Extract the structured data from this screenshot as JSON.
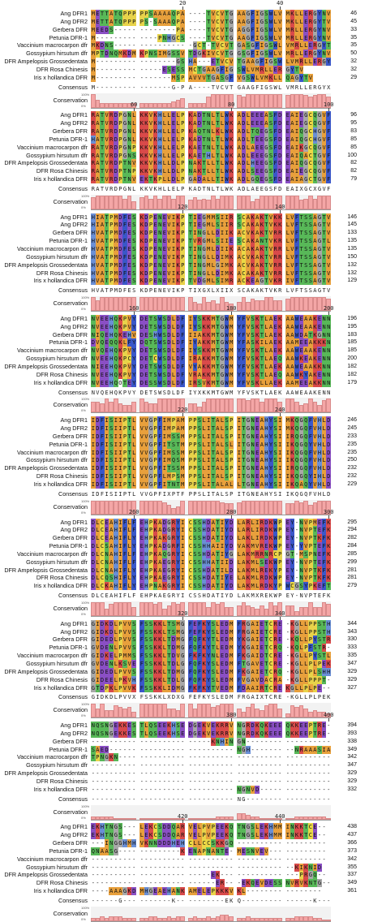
{
  "species": [
    "Ang DFR1",
    "Ang DFR2",
    "Gerbera DFR",
    "Petunia DFR-1",
    "Vaccinium macrocarpon dfr",
    "Gossypium hirsutum dfr",
    "DFR Ampelopsis Grossedentata",
    "DFR Rosa Chinesis",
    "Iris x hollandica DFR"
  ],
  "labels": {
    "consensus": "Consensus",
    "conservation": "Conservation",
    "pct100": "100%",
    "pct0": "0%"
  },
  "colors": {
    "A": "#e8a03c",
    "V": "#e8a03c",
    "L": "#e8a03c",
    "I": "#e8a03c",
    "M": "#e8a03c",
    "F": "#3a57c9",
    "W": "#3a57c9",
    "Y": "#3a57c9",
    "K": "#d94a4a",
    "R": "#d94a4a",
    "H": "#6a8fd6",
    "D": "#8a4fc4",
    "E": "#8a4fc4",
    "S": "#58b858",
    "T": "#58b858",
    "N": "#58b858",
    "Q": "#58b858",
    "G": "#a8a8a8",
    "P": "#e8d34a",
    "C": "#ebd846",
    "-": "#ffffff"
  },
  "blocks": [
    {
      "ruler": [
        {
          "pos": 20,
          "col": 19
        },
        {
          "pos": 40,
          "col": 39
        }
      ],
      "rows": [
        {
          "seq": "METTATQPPP PPSAAAAQPA ----TVCVTG AAGFIGSWLV MKLLERGYNV",
          "end": "46"
        },
        {
          "seq": "METTATQPPP PS-SAAAQPA ----TVCVTG AAGFIGSWLV MKLLERGYTV",
          "end": "45"
        },
        {
          "seq": "MEEDS----- --------PA ----TVCVTG AGGFIGSWLV MRLLERGYNV",
          "end": "33"
        },
        {
          "seq": "M--------- ----PNHGCS ----TVCVTG AAGFIGSWLV MRLLERGYNV",
          "end": "35"
        },
        {
          "seq": "MKDNS----- ----------- GCT-TVCVTG ASGFIGSWLV MRLLERGYTV",
          "end": "35"
        },
        {
          "seq": "MPTDNQMKDM KPNSIMGSSV TDGKIVCVTG GSGFIGSWLV MRLLERGYNV",
          "end": "50"
        },
        {
          "seq": "M--------- --------GSHA ---ETVCVTG AAGFIGSWLV MRLLERGYNV",
          "end": "32"
        },
        {
          "seq": "M--------- -----ESESSMCTG AAGFIGSWLV MRLLERGYTV",
          "end": "32"
        },
        {
          "seq": "M--------- -------MSPA VVVTG ASGFVGSWLV MKLLQAGYTV",
          "end": "29"
        }
      ],
      "consensus": "M--------- -------G-PA ----TVCVTG AAGFIGSWLV MRLLERGYXV",
      "cons": [
        9,
        5,
        3,
        3,
        3,
        3,
        3,
        3,
        3,
        3,
        3,
        3,
        3,
        3,
        3,
        3,
        3,
        4,
        5,
        6,
        3,
        3,
        3,
        3,
        7,
        9,
        9,
        9,
        9,
        9,
        8,
        7,
        9,
        9,
        9,
        9,
        9,
        9,
        9,
        9,
        8,
        9,
        9,
        9,
        8,
        7,
        8,
        9,
        9,
        7
      ]
    },
    {
      "ruler": [
        {
          "pos": 60,
          "col": 9
        },
        {
          "pos": 80,
          "col": 29
        },
        {
          "pos": 100,
          "col": 49
        }
      ],
      "rows": [
        {
          "seq": "RATVRDPGNL KKVKHLLELP KADTNLTLWK ADLEEEASFD EAIEGCQGVF",
          "end": "96"
        },
        {
          "seq": "RATVRDPGNL KKVKHLLELP KADTNLTLWK ADLEEEASFD EAIEGCQGVF",
          "end": "95"
        },
        {
          "seq": "RATVRDPGNL KKVKHLLELP KAQTNLKLWK ADLTQEGSFD EAIQGCHGVF",
          "end": "83"
        },
        {
          "seq": "HATVRDPGNL KKVKHLLELP KADTNLTLWK ADLTEEGSFD EAIQGCHGVF",
          "end": "85"
        },
        {
          "seq": "RATVRDPGNP KKVKHLLELP KAETNLTLWK ADLAEEGSFD EAIKGCQGVF",
          "end": "85"
        },
        {
          "seq": "RATVRDPGNS KKVKHLLELP KAETHLTLWK ADLEEEGSFD EAIQACTGVF",
          "end": "100"
        },
        {
          "seq": "RATVRDPTNV KKVKHLLDLP NAKTLLTLWK ADLHEEGSFD EAIQGCQGVF",
          "end": "82"
        },
        {
          "seq": "RATVRDPTNP KKVKHLLDLP NAKTLLTLWK ADLSEEGSFD EAIEGCQGVF",
          "end": "82"
        },
        {
          "seq": "RATVRDPTNV EKTKPLLDLP GADALLTIWK ADLGQEGSFD EAIAGCTGVF",
          "end": "79"
        }
      ],
      "consensus": "RATVRDPGNL KKVKHLLELP KADTNLTLWK ADLAEEGSFD EAIXGCXGVF",
      "cons": [
        8,
        9,
        9,
        9,
        9,
        9,
        9,
        7,
        9,
        5,
        8,
        9,
        7,
        9,
        7,
        9,
        9,
        7,
        9,
        9,
        6,
        8,
        6,
        7,
        6,
        9,
        7,
        9,
        9,
        9,
        9,
        9,
        9,
        5,
        7,
        9,
        9,
        9,
        9,
        9,
        9,
        9,
        9,
        6,
        7,
        9,
        7,
        9,
        9,
        9
      ]
    },
    {
      "ruler": [
        {
          "pos": 120,
          "col": 19
        },
        {
          "pos": 140,
          "col": 39
        }
      ],
      "rows": [
        {
          "seq": "HIATPMDFES KDPENEVIKP TIEGMMSIIR SCAKAKTVKK LVFTSSAGTV",
          "end": "146"
        },
        {
          "seq": "HIATPMDFES KDPENEVIKP TIEGMLSIIR SCAKAKTVKK LVFTSSAGTV",
          "end": "145"
        },
        {
          "seq": "HVATPMDFES KDPENEVIKP TINGLLDIIK ACVKAKTVRR LVFTSSAGTV",
          "end": "133"
        },
        {
          "seq": "HVATPMDFES KDPENEVIKP TVRGMLSIIE SCAKANTVKR LVFTSSAGTL",
          "end": "135"
        },
        {
          "seq": "HVATPMDFES KDPENEVIKP TINGMLDIIK ACAKAKTVRR LVFTSSAGTV",
          "end": "135"
        },
        {
          "seq": "HVATPMDFES KDPENEVIKP TINGLLDIMK ACVKAKTVRR LVFTSSAGTV",
          "end": "150"
        },
        {
          "seq": "HVATPMDFES KDPENEVIKP TINGMLGIMK ACVKAKTVRR LVFTSSAGTV",
          "end": "132"
        },
        {
          "seq": "HVATPMDFES KDPENEVIKP TINGLLDIMK ACAKAKTVRR LVFTSSAGTV",
          "end": "132"
        },
        {
          "seq": "HVATPMDFES KDPENEVIKP TVDGMLSIMR ACKEAGTVKR IVFTSSAGTV",
          "end": "129"
        }
      ],
      "consensus": "HVATPMDFES KDPENEVIKP TIXGXLXIIX SCAKAKTVKR LVFTSSAGTV",
      "cons": [
        9,
        7,
        9,
        9,
        9,
        9,
        9,
        9,
        9,
        9,
        9,
        9,
        9,
        9,
        9,
        9,
        9,
        9,
        9,
        9,
        9,
        6,
        5,
        9,
        6,
        7,
        5,
        9,
        6,
        5,
        6,
        9,
        6,
        8,
        7,
        7,
        9,
        9,
        7,
        7,
        8,
        9,
        9,
        9,
        9,
        9,
        9,
        9,
        9,
        8
      ]
    },
    {
      "ruler": [
        {
          "pos": 160,
          "col": 9
        },
        {
          "pos": 180,
          "col": 29
        },
        {
          "pos": 200,
          "col": 49
        }
      ],
      "rows": [
        {
          "seq": "NVEEHQKPVY DETSWSDLDF IYSKKMTGWM YFVSKTLAEK AAWEAAKENN",
          "end": "196"
        },
        {
          "seq": "NVEEHQKPVY DETSWSDLDF IYSKKMTGWM YFVSKTLAEK AAWEAAKENN",
          "end": "195"
        },
        {
          "seq": "NIQEHQKEHV DESHWSDLDF IIAKKMTGWM YFVSKTLAEK AAWDATKGNN",
          "end": "183"
        },
        {
          "seq": "DVQEQQKLFY DQTSWSDLDF IYAKKMTGWM YFASKILAEK AAMEEAKKKN",
          "end": "185"
        },
        {
          "seq": "NVQEHQKPVY DETSWSDLDF IYSKKMTGWM YFVSKTLAEK AAWEAAKENN",
          "end": "185"
        },
        {
          "seq": "NVEEHQKPCY DETCWSDLDF IRAKKMTGWM YFVSKTLAEQ AAWKEAKENN",
          "end": "200"
        },
        {
          "seq": "NIEEHQKPVY DETSWSDLDF VYAKKMTGWM YFVSKTLAEK AAWEAAKKNN",
          "end": "182"
        },
        {
          "seq": "NVEEHQKPVY DETSWSDLDF VRAKKMTGWM YFVSKTLAEQ AAWKYAKENN",
          "end": "182"
        },
        {
          "seq": "NVEEHQOTEY DESSWSDLDF IRSVKMTGWM YFVSKLLAEK AAMEEAKKNN",
          "end": "179"
        }
      ],
      "consensus": "NVQEHQKPVY DETSWSDLDF IYXKKMTGWM YFVSKTLAEK AAWEAAKENN",
      "cons": [
        7,
        7,
        6,
        9,
        7,
        9,
        6,
        5,
        5,
        7,
        9,
        7,
        6,
        6,
        9,
        9,
        9,
        9,
        9,
        9,
        6,
        6,
        4,
        7,
        9,
        9,
        9,
        9,
        9,
        9,
        9,
        9,
        8,
        9,
        9,
        7,
        9,
        9,
        9,
        7,
        9,
        9,
        7,
        5,
        6,
        9,
        7,
        5,
        8,
        9
      ]
    },
    {
      "ruler": [
        {
          "pos": 220,
          "col": 19
        },
        {
          "pos": 240,
          "col": 39
        }
      ],
      "rows": [
        {
          "seq": "IDFISIIPTL VVGPFIMPAM PPSLITALSP ITGNEAHYSI MKQGQFVHLD",
          "end": "246"
        },
        {
          "seq": "IDFISIIPTL VVGPFIMPAM PPSLITALSP ITGNEAHYSI MKQGQFVHLD",
          "end": "245"
        },
        {
          "seq": "IDFISIIPTL VVGPFIMSSM PPSLITALSP ITGNEAHYSI IRQGQFVHLD",
          "end": "233"
        },
        {
          "seq": "IDFISIIPTL VVGPFITSTM PPSLITALSL ITGNEAHYSI IKQGQYVHLD",
          "end": "235"
        },
        {
          "seq": "IDFISIIPTL VVGPFIMSSM PPSLITALSP ITGNEAHYSI IKQGQFVHLD",
          "end": "235"
        },
        {
          "seq": "IDFISIIPTL VVGPFIMQSM PPSLITALSP ITGNEAHYSI IKQGQFVHLD",
          "end": "250"
        },
        {
          "seq": "IDFISIIPTL VVGPFITSSM PPSLITALSP ITGNEAHYSI IRQGQFVHLD",
          "end": "232"
        },
        {
          "seq": "IDFISIIPTL VVGPFLMPSM PPSLITALSP ITGNEAHYSI IKQGQYIHLD",
          "end": "232"
        },
        {
          "seq": "IDFISIIPTL VVGPFITNTM PPSLITALAL LTGNEAHYSI IKQAQYVHLD",
          "end": "229"
        }
      ],
      "consensus": "IDFISIIPTL VVGPFIXPTF PPSLITALSP ITGNEAHYSI IKQGQFVHLD",
      "cons": [
        9,
        9,
        9,
        9,
        9,
        9,
        9,
        9,
        9,
        9,
        9,
        9,
        9,
        9,
        9,
        8,
        6,
        4,
        5,
        9,
        9,
        9,
        9,
        9,
        9,
        9,
        9,
        8,
        7,
        7,
        8,
        9,
        9,
        9,
        9,
        9,
        9,
        9,
        9,
        9,
        7,
        7,
        9,
        8,
        9,
        6,
        8,
        9,
        9,
        9
      ]
    },
    {
      "ruler": [
        {
          "pos": 260,
          "col": 9
        },
        {
          "pos": 280,
          "col": 29
        },
        {
          "pos": 300,
          "col": 49
        }
      ],
      "rows": [
        {
          "seq": "DLCEAHIFLF EHPKADGRYI CSSHDATIYD LARLIRDKWP EY-NVPMEFK",
          "end": "295"
        },
        {
          "seq": "DLCEAHIFLF EHPKADGRYI CSSHDATIYD LARLIRDKWP EY-NVPTEFK",
          "end": "294"
        },
        {
          "seq": "DLCEAHIFLY EHPKAKGRYI CSSHDATIYD LAKLIRDKWP EY-NVPTKFK",
          "end": "282"
        },
        {
          "seq": "DLCSAHIFLY EHPKADGRFI CSSHHAIIYD VAKMVREKWP EY-YVPTEFK",
          "end": "284"
        },
        {
          "seq": "DLCNAHIFLF EHPKAQGRYI CSSHDATIYG LAKMRRNRCP GT-MSPNEFK",
          "end": "285"
        },
        {
          "seq": "DLCNAHIFLF EHPKAEGRYI CSSHHATIID LAKMLSEKWP EY-NVPTEFK",
          "end": "299"
        },
        {
          "seq": "DLCNAHIFLY EHPKAEGRYI CSSHDATILD LAKMLREKYP EY-NVPTKFK",
          "end": "281"
        },
        {
          "seq": "DLCQSHIFLY EHPKAEGRYI CSSHDATIYE LAKMLRDKWP EY-NVPTKFK",
          "end": "281"
        },
        {
          "seq": "DLCKAHIFLY EHPNAKGRYI CSSHDATIYD LAKMLRDKYP WCGSYPKEFT",
          "end": "279"
        }
      ],
      "consensus": "DLCEAHIFLF EHPKAEGRYI CSSHDATIYD LAKMXREKWP EY-NVPTEFK",
      "cons": [
        9,
        9,
        9,
        5,
        8,
        9,
        9,
        9,
        9,
        6,
        9,
        9,
        9,
        8,
        9,
        5,
        7,
        9,
        8,
        9,
        9,
        9,
        9,
        9,
        6,
        9,
        8,
        9,
        6,
        6,
        7,
        9,
        7,
        6,
        5,
        7,
        5,
        9,
        7,
        9,
        7,
        7,
        3,
        6,
        6,
        9,
        6,
        6,
        9,
        8
      ]
    },
    {
      "ruler": [
        {
          "pos": 320,
          "col": 19
        },
        {
          "pos": 340,
          "col": 39
        }
      ],
      "rows": [
        {
          "seq": "GIDKDLPVVS FSSKKLTSMG FEFKYSLEDM FRGAIETCRE -KGLLPPSTH",
          "end": "344"
        },
        {
          "seq": "GIDKDLPVVS FSSKKLTSMG FEFKYSLEDM FRGAIETCRE -KGLLPPSTH",
          "end": "343"
        },
        {
          "seq": "GIDEDLPVVS FSSKKLTDMG FQFKYTLEDM YKGAIETCRE -KQLLPYSTR",
          "end": "330"
        },
        {
          "seq": "GVDENLPVVS FSSKKLTDMG FQFKYTLEDM YKGAIETCRQ -KQLPFSTR-",
          "end": "333"
        },
        {
          "seq": "GIDKELPMMS FSSKKLTDVG FKFKYNLEDM FKGAIDTCRE -KGLLPYSTL",
          "end": "335"
        },
        {
          "seq": "GVDENLKSVE FSSKKLTDLG FQFKYSLEDM FTGAVETCRE -KGLLPLPEK",
          "end": "347"
        },
        {
          "seq": "GIDEDLPVVS FSSKKLTDMG FQFKYSLEDM FKGAIETCRQ -KGLLPLSHH",
          "end": "329"
        },
        {
          "seq": "GIDEELPKVH FSSKKLTDLG FQFKYSLEDM FVGAVDACRA -KGLLPPPT-",
          "end": "329"
        },
        {
          "seq": "GTDPKLPVVK FSSKKLIDMG FKFKYTVEDM FDAAIRTCRE KGLLPLPE--",
          "end": "327"
        }
      ],
      "consensus": "GIDKDLPVVX FSSKKLXDXG FEFKYSLEDM FRGAIXTCRE -KGLLPLPEK",
      "cons": [
        9,
        6,
        9,
        5,
        5,
        8,
        7,
        6,
        7,
        4,
        9,
        9,
        9,
        9,
        9,
        9,
        6,
        6,
        5,
        9,
        9,
        6,
        9,
        9,
        9,
        7,
        8,
        9,
        9,
        9,
        6,
        4,
        7,
        9,
        6,
        5,
        8,
        9,
        9,
        6,
        3,
        8,
        7,
        8,
        6,
        4,
        5,
        4,
        4,
        3
      ]
    },
    {
      "ruler": [
        {
          "pos": 380,
          "col": 29
        },
        {
          "pos": 400,
          "col": 49
        }
      ],
      "rows": [
        {
          "seq": "NQSNGEKKES TLQSEEKHSE DGEKVEKRRV NGRDKQKEEE QKKEEPTRE-",
          "end": "394"
        },
        {
          "seq": "NQSNGEKKES TLQSEEKHSE DGEKVEKRRV NGRDKQKEEE QKKEEPTRE-",
          "end": "393"
        },
        {
          "seq": "--------- ---------- ------KNHI NGN------- -----------",
          "end": "338"
        },
        {
          "seq": "SAED------ ---------- ---------- NGH------- --NRAAASIA",
          "end": "349"
        },
        {
          "seq": "TPNGKN---- ---------- ---------- ---------- ----------",
          "end": "342"
        },
        {
          "seq": "---------- ---------- ---------- ---------- ----------",
          "end": "347"
        },
        {
          "seq": "---------- ---------- ---------- ---------- ----------",
          "end": "329"
        },
        {
          "seq": "---------- ---------- ---------- ---------- ----------",
          "end": "329"
        },
        {
          "seq": "---------- ---------- ---------- NGNVD----- ----------",
          "end": "332"
        }
      ],
      "consensus": "---------- ---------- ---------- NG-------- ----------",
      "cons": [
        2,
        2,
        2,
        2,
        2,
        1,
        1,
        1,
        1,
        1,
        1,
        1,
        1,
        1,
        1,
        1,
        1,
        1,
        1,
        1,
        1,
        1,
        1,
        1,
        1,
        1,
        2,
        2,
        2,
        2,
        4,
        4,
        3,
        2,
        2,
        1,
        1,
        1,
        1,
        1,
        1,
        1,
        2,
        2,
        2,
        2,
        2,
        2,
        2,
        1
      ]
    },
    {
      "ruler": [
        {
          "pos": 420,
          "col": 19
        },
        {
          "pos": 440,
          "col": 39
        }
      ],
      "rows": [
        {
          "seq": "EKHTNGS--- LEKCSDDQAR VELPVPEEKQ TNGSLEKHMM INKKTCE--",
          "end": "438"
        },
        {
          "seq": "EKHTNGS--- LEKCSDDQAR VELPVPEEKQ TNGSLEKHMM INKKTCE--",
          "end": "437"
        },
        {
          "seq": "---INGGHMHV KNNDDDHEH CLLCCSKKGQ ---------- ---------",
          "end": "366"
        },
        {
          "seq": "QNAASG---- ---------K ENAPNANTE- MESNVEV--- ---------",
          "end": "373"
        },
        {
          "seq": "---------- ---------- ---------- ---------- ---------",
          "end": "342"
        },
        {
          "seq": "---------- ---------- ---------- ---------- --KIKNID",
          "end": "355"
        },
        {
          "seq": "---------- ---------- -----EK--- ---------- ---PRGQ--",
          "end": "337"
        },
        {
          "seq": "---------- ---------- ------ER--- EKQEVDESSN VRVKNTG--",
          "end": "349"
        },
        {
          "seq": "----AAAGKD MHGEAEHAN KAMELEPKKK VKL------- ---------",
          "end": "361"
        }
      ],
      "consensus": "------G--- -------K ----------EKQ ---------- -----K---",
      "cons": [
        2,
        2,
        3,
        2,
        3,
        3,
        3,
        2,
        2,
        2,
        2,
        2,
        3,
        3,
        2,
        2,
        3,
        2,
        3,
        3,
        2,
        3,
        2,
        2,
        3,
        2,
        3,
        4,
        4,
        3,
        2,
        2,
        3,
        2,
        2,
        2,
        2,
        2,
        2,
        2,
        2,
        2,
        3,
        3,
        3,
        3,
        2,
        2,
        1,
        1
      ]
    }
  ]
}
